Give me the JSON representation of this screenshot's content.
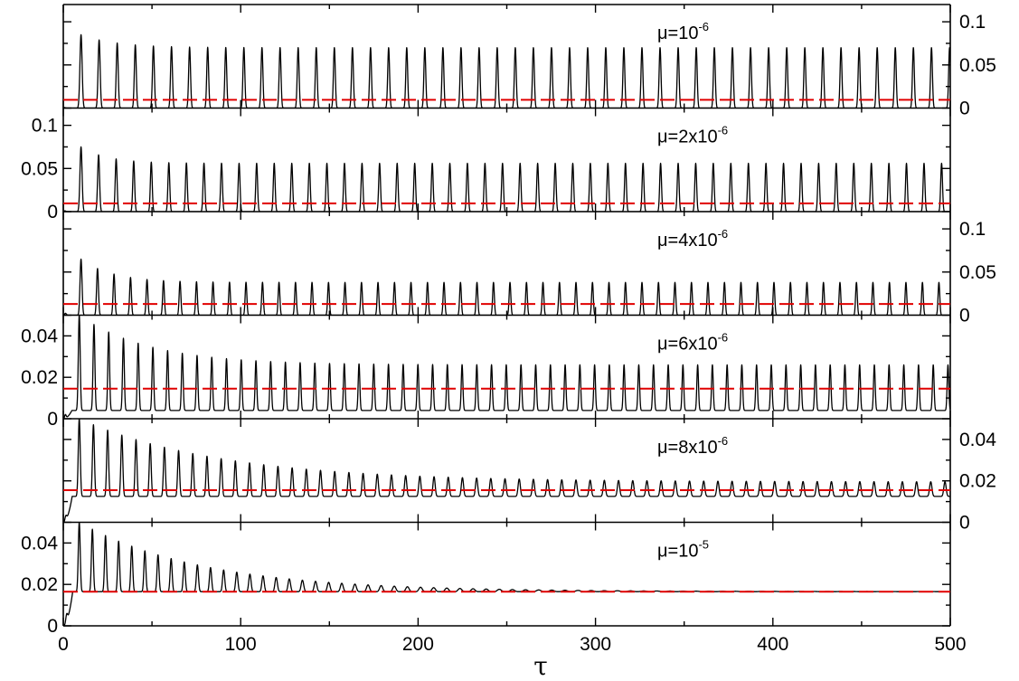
{
  "chart_data": {
    "type": "line",
    "xlabel": "τ",
    "xlim": [
      0,
      500
    ],
    "xticks": [
      0,
      100,
      200,
      300,
      400,
      500
    ],
    "reference_line_color": "#e00000",
    "trace_color": "#000000",
    "panels": [
      {
        "label": "μ=10",
        "label_exp": "-6",
        "ylim": [
          0,
          0.12
        ],
        "yticks": [
          0,
          0.05,
          0.1
        ],
        "tick_side": "right",
        "reference": 0.0095,
        "oscillation": {
          "period": 10.2,
          "first_peak_t": 10,
          "first_peak": 0.085,
          "peak_late": 0.07,
          "trough_late": 0.0,
          "decay_time": 20,
          "start": 0.0
        }
      },
      {
        "label": "μ=2x10",
        "label_exp": "-6",
        "ylim": [
          0,
          0.12
        ],
        "yticks": [
          0,
          0.05,
          0.1
        ],
        "tick_side": "left",
        "reference": 0.0095,
        "oscillation": {
          "period": 9.9,
          "first_peak_t": 10,
          "first_peak": 0.075,
          "peak_late": 0.056,
          "trough_late": 0.0,
          "decay_time": 15,
          "start": 0.0
        }
      },
      {
        "label": "μ=4x10",
        "label_exp": "-6",
        "ylim": [
          0,
          0.12
        ],
        "yticks": [
          0,
          0.05,
          0.1
        ],
        "tick_side": "right",
        "reference": 0.013,
        "oscillation": {
          "period": 9.3,
          "first_peak_t": 10,
          "first_peak": 0.065,
          "peak_late": 0.038,
          "trough_late": 0.0,
          "decay_time": 18,
          "start": 0.0
        }
      },
      {
        "label": "μ=6x10",
        "label_exp": "-6",
        "ylim": [
          0,
          0.05
        ],
        "yticks": [
          0,
          0.02,
          0.04
        ],
        "tick_side": "left",
        "reference": 0.0145,
        "oscillation": {
          "period": 8.3,
          "first_peak_t": 9,
          "first_peak": 0.05,
          "peak_late": 0.026,
          "trough_late": 0.004,
          "decay_time": 40,
          "start": 0.0
        }
      },
      {
        "label": "μ=8x10",
        "label_exp": "-6",
        "ylim": [
          0,
          0.05
        ],
        "yticks": [
          0,
          0.02,
          0.04
        ],
        "tick_side": "right",
        "reference": 0.0155,
        "oscillation": {
          "period": 8.0,
          "first_peak_t": 9,
          "first_peak": 0.05,
          "peak_late": 0.0195,
          "trough_late": 0.0125,
          "decay_time": 80,
          "start": 0.0
        }
      },
      {
        "label": "μ=10",
        "label_exp": "-5",
        "ylim": [
          0,
          0.05
        ],
        "yticks": [
          0,
          0.02,
          0.04
        ],
        "tick_side": "left",
        "reference": 0.0165,
        "oscillation": {
          "period": 7.4,
          "first_peak_t": 9,
          "first_peak": 0.05,
          "peak_late": 0.0165,
          "trough_late": 0.0165,
          "decay_time": 70,
          "start": 0.0
        }
      }
    ]
  }
}
